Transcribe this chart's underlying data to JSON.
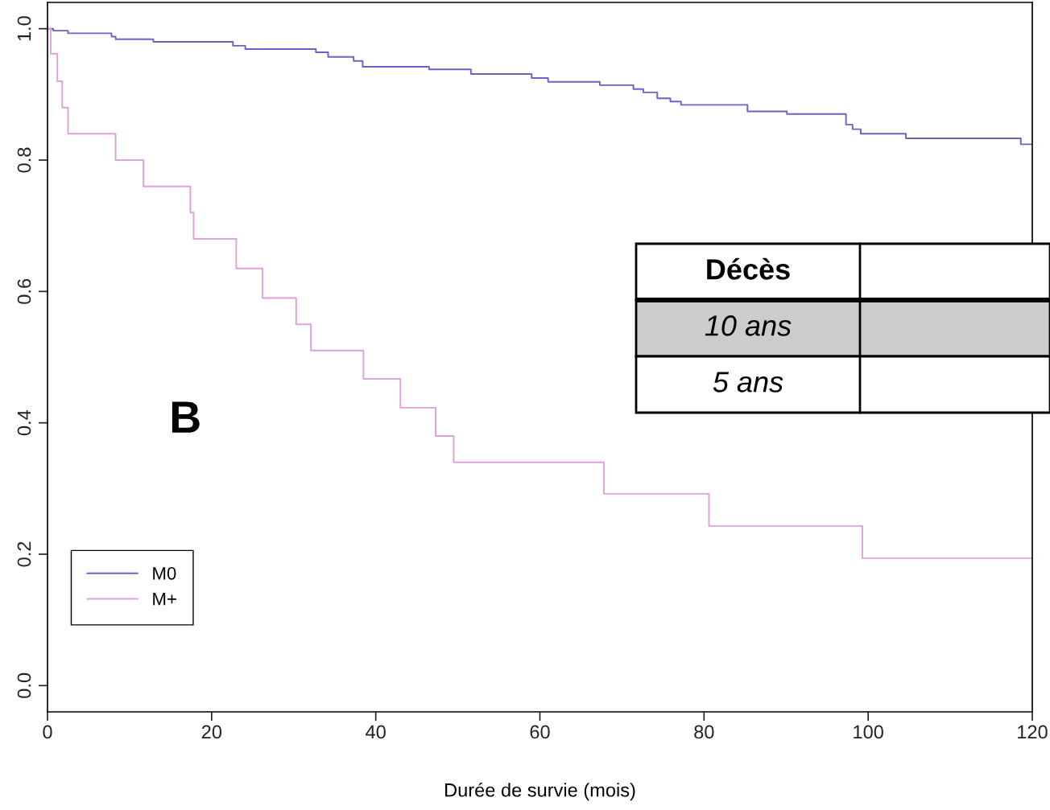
{
  "chart_data": {
    "type": "step",
    "xlabel": "Durée de survie (mois)",
    "xlim": [
      0,
      120
    ],
    "ylim": [
      -0.04,
      1.04
    ],
    "xticks": [
      0,
      20,
      40,
      60,
      80,
      100,
      120
    ],
    "yticks": [
      {
        "value": 0,
        "label": "0.0"
      },
      0.2,
      0.4,
      0.6,
      0.8,
      {
        "value": 1,
        "label": "1.0"
      }
    ],
    "grid": false,
    "legend": "bottom left",
    "series": [
      {
        "name": "M0",
        "color": "#6b63c8",
        "x": [
          0,
          0.7,
          2.5,
          7.8,
          8.3,
          12.9,
          22.6,
          24.1,
          32.7,
          34.2,
          37.3,
          38.4,
          46.5,
          51.6,
          59,
          61,
          67.3,
          71.4,
          72.6,
          74.3,
          75.9,
          77.2,
          85.3,
          90.1,
          97.3,
          98.1,
          99.1,
          104.6,
          118.6,
          120
        ],
        "values": [
          1.0,
          0.997,
          0.993,
          0.988,
          0.984,
          0.98,
          0.974,
          0.969,
          0.964,
          0.957,
          0.951,
          0.942,
          0.938,
          0.931,
          0.925,
          0.919,
          0.914,
          0.908,
          0.903,
          0.894,
          0.889,
          0.884,
          0.874,
          0.87,
          0.854,
          0.847,
          0.84,
          0.833,
          0.824,
          0.824
        ]
      },
      {
        "name": "M+",
        "color": "#e0a0dc",
        "x": [
          0,
          0.4,
          1.2,
          1.8,
          2.5,
          8.3,
          11.7,
          17.4,
          17.8,
          23,
          26.2,
          30.3,
          32.1,
          38.5,
          43,
          47.3,
          49.5,
          67.8,
          80.6,
          99.3,
          120
        ],
        "values": [
          1.0,
          0.962,
          0.92,
          0.88,
          0.84,
          0.8,
          0.76,
          0.72,
          0.68,
          0.635,
          0.59,
          0.55,
          0.51,
          0.467,
          0.423,
          0.38,
          0.34,
          0.292,
          0.243,
          0.194,
          0.194
        ]
      }
    ],
    "annotations": [
      "B",
      "Décès",
      "10 ans",
      "5 ans"
    ]
  }
}
